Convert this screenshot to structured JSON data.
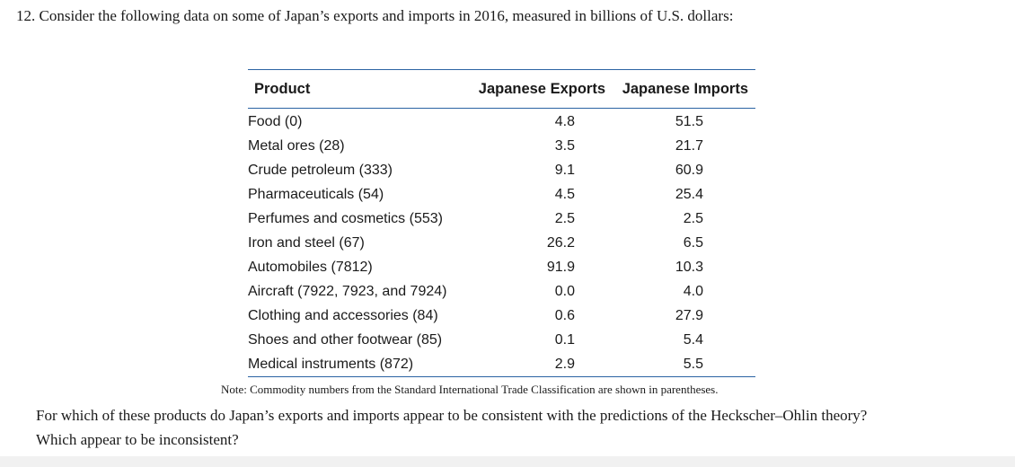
{
  "question": {
    "text": "12. Consider the following data on some of Japan’s exports and imports in 2016, measured in billions of U.S. dollars:"
  },
  "table": {
    "headers": {
      "product": "Product",
      "exports": "Japanese Exports",
      "imports": "Japanese Imports"
    },
    "rows": [
      {
        "product": "Food (0)",
        "exports": "4.8",
        "imports": "51.5"
      },
      {
        "product": "Metal ores (28)",
        "exports": "3.5",
        "imports": "21.7"
      },
      {
        "product": "Crude petroleum (333)",
        "exports": "9.1",
        "imports": "60.9"
      },
      {
        "product": "Pharmaceuticals (54)",
        "exports": "4.5",
        "imports": "25.4"
      },
      {
        "product": "Perfumes and cosmetics (553)",
        "exports": "2.5",
        "imports": "2.5"
      },
      {
        "product": "Iron and steel (67)",
        "exports": "26.2",
        "imports": "6.5"
      },
      {
        "product": "Automobiles (7812)",
        "exports": "91.9",
        "imports": "10.3"
      },
      {
        "product": "Aircraft (7922, 7923, and 7924)",
        "exports": "0.0",
        "imports": "4.0"
      },
      {
        "product": "Clothing and accessories (84)",
        "exports": "0.6",
        "imports": "27.9"
      },
      {
        "product": "Shoes and other footwear (85)",
        "exports": "0.1",
        "imports": "5.4"
      },
      {
        "product": "Medical instruments (872)",
        "exports": "2.9",
        "imports": "5.5"
      }
    ]
  },
  "note": {
    "text": "Note: Commodity numbers from the Standard International Trade Classification are shown in parentheses."
  },
  "followup": {
    "line1": "For which of these products do Japan’s exports and imports appear to be consistent with the predictions of the Heckscher–Ohlin theory?",
    "line2": "Which appear to be inconsistent?"
  }
}
